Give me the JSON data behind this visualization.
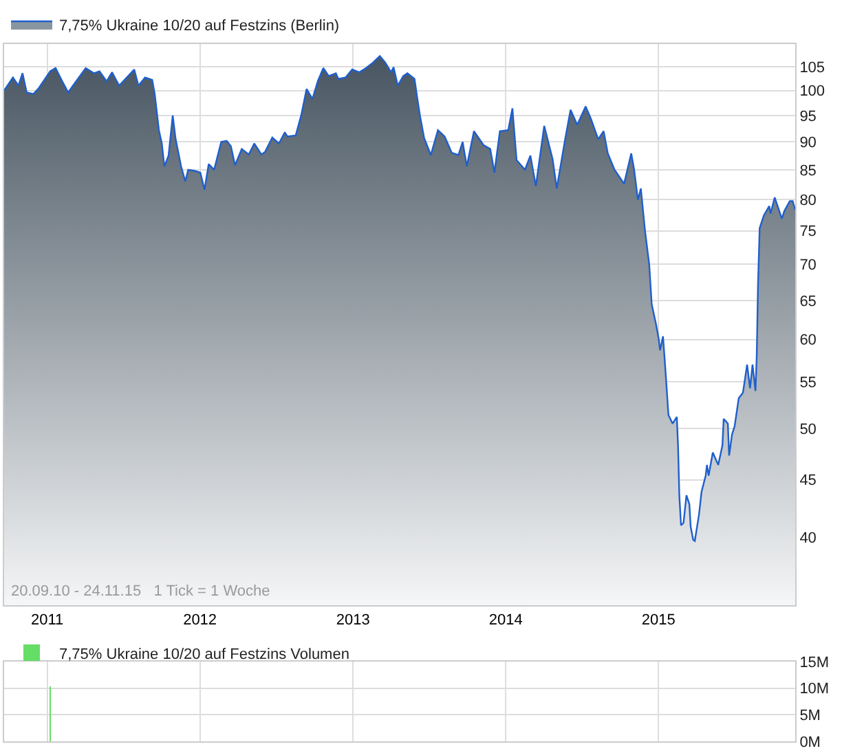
{
  "chart_data": [
    {
      "type": "area",
      "legend": "top left",
      "log": true,
      "grid": true,
      "annotations": [
        "20.09.10 - 24.11.15   1 Tick = 1 Woche"
      ],
      "x": [
        "2010-09-20",
        "2010-10-11",
        "2010-10-24",
        "2010-11-03",
        "2010-11-13",
        "2010-11-29",
        "2010-12-12",
        "2011-01-08",
        "2011-01-21",
        "2011-02-06",
        "2011-02-20",
        "2011-03-11",
        "2011-04-03",
        "2011-04-23",
        "2011-05-06",
        "2011-05-23",
        "2011-06-05",
        "2011-06-22",
        "2011-07-05",
        "2011-07-28",
        "2011-08-07",
        "2011-08-23",
        "2011-09-09",
        "2011-09-15",
        "2011-09-25",
        "2011-10-02",
        "2011-10-08",
        "2011-10-18",
        "2011-10-28",
        "2011-11-04",
        "2011-11-17",
        "2011-11-27",
        "2011-12-04",
        "2011-12-20",
        "2012-01-02",
        "2012-01-12",
        "2012-01-22",
        "2012-02-04",
        "2012-02-21",
        "2012-03-05",
        "2012-03-15",
        "2012-03-25",
        "2012-04-10",
        "2012-04-27",
        "2012-05-10",
        "2012-05-27",
        "2012-06-05",
        "2012-06-22",
        "2012-07-08",
        "2012-07-22",
        "2012-07-28",
        "2012-08-17",
        "2012-08-30",
        "2012-09-12",
        "2012-09-26",
        "2012-10-09",
        "2012-10-22",
        "2012-11-04",
        "2012-11-21",
        "2012-11-27",
        "2012-12-14",
        "2012-12-30",
        "2013-01-16",
        "2013-02-01",
        "2013-02-18",
        "2013-03-06",
        "2013-03-19",
        "2013-04-02",
        "2013-04-08",
        "2013-04-18",
        "2013-05-01",
        "2013-05-11",
        "2013-05-28",
        "2013-06-03",
        "2013-06-10",
        "2013-06-20",
        "2013-07-06",
        "2013-07-23",
        "2013-08-08",
        "2013-08-25",
        "2013-09-10",
        "2013-09-20",
        "2013-09-30",
        "2013-10-17",
        "2013-11-09",
        "2013-11-25",
        "2013-12-05",
        "2013-12-18",
        "2014-01-07",
        "2014-01-17",
        "2014-01-27",
        "2014-02-16",
        "2014-03-01",
        "2014-03-14",
        "2014-04-03",
        "2014-04-23",
        "2014-05-03",
        "2014-05-23",
        "2014-06-05",
        "2014-06-21",
        "2014-07-11",
        "2014-07-24",
        "2014-08-10",
        "2014-08-23",
        "2014-09-02",
        "2014-09-18",
        "2014-10-11",
        "2014-10-28",
        "2014-11-04",
        "2014-11-13",
        "2014-11-20",
        "2014-11-30",
        "2014-12-10",
        "2014-12-16",
        "2014-12-26",
        "2015-01-02",
        "2015-01-05",
        "2015-01-12",
        "2015-01-18",
        "2015-01-25",
        "2015-02-04",
        "2015-02-14",
        "2015-02-17",
        "2015-02-20",
        "2015-02-24",
        "2015-03-02",
        "2015-03-09",
        "2015-03-16",
        "2015-03-19",
        "2015-03-25",
        "2015-03-29",
        "2015-04-08",
        "2015-04-14",
        "2015-04-24",
        "2015-04-27",
        "2015-05-01",
        "2015-05-11",
        "2015-05-24",
        "2015-06-03",
        "2015-06-06",
        "2015-06-16",
        "2015-06-19",
        "2015-06-26",
        "2015-07-02",
        "2015-07-12",
        "2015-07-22",
        "2015-08-01",
        "2015-08-08",
        "2015-08-14",
        "2015-08-21",
        "2015-08-24",
        "2015-08-27",
        "2015-08-31",
        "2015-09-10",
        "2015-09-23",
        "2015-09-26",
        "2015-10-06",
        "2015-10-23",
        "2015-10-29",
        "2015-11-11",
        "2015-11-18",
        "2015-11-24"
      ],
      "series": [
        {
          "name": "7,75% Ukraine 10/20 auf Festzins (Berlin)",
          "color": "#1f5fcc",
          "values": [
            100,
            102.7,
            101,
            103.6,
            99.6,
            99.3,
            100.5,
            104,
            104.7,
            101.9,
            99.6,
            101.9,
            104.7,
            103.6,
            104,
            101.9,
            103.8,
            101,
            102.2,
            104.4,
            101,
            102.7,
            102.2,
            99.3,
            92.2,
            89.7,
            85.6,
            87.5,
            95,
            90.5,
            85.6,
            83,
            85,
            84.8,
            84.5,
            81.6,
            86,
            85,
            90,
            90.2,
            89.2,
            85.8,
            88.7,
            87.7,
            89.7,
            87.7,
            88.2,
            90.8,
            89.7,
            91.8,
            91,
            91.2,
            95,
            100.3,
            98.3,
            102,
            104.7,
            103,
            103.6,
            102.4,
            102.7,
            104.4,
            103.8,
            104.7,
            105.9,
            107.3,
            105.9,
            103.8,
            104.9,
            101,
            103,
            103.6,
            102.4,
            98.8,
            95,
            90.7,
            87.6,
            92.2,
            91,
            88,
            87.6,
            90,
            85.6,
            92,
            89.4,
            88.7,
            84.5,
            92,
            92.2,
            96.4,
            86.7,
            85,
            87.5,
            82.2,
            93,
            86.9,
            81.8,
            90.5,
            96.1,
            93.2,
            96.8,
            94.3,
            90.5,
            92,
            87.9,
            85,
            82.6,
            87.9,
            85,
            79.9,
            81.8,
            75,
            70,
            64.5,
            62,
            60,
            58.7,
            60.4,
            56.2,
            51.4,
            50.5,
            51.2,
            48.2,
            43.6,
            41,
            41.2,
            43.6,
            42.8,
            40.9,
            39.8,
            39.7,
            41.9,
            43.9,
            45.4,
            46.4,
            45.4,
            47.6,
            46.4,
            48.3,
            51,
            50.5,
            47.3,
            49.4,
            50.2,
            53.2,
            53.8,
            57,
            54.3,
            57,
            54,
            58,
            67.1,
            75.4,
            77.4,
            78.9,
            77.7,
            80.3,
            76.9,
            78.1,
            79.7,
            79.7,
            78.3
          ]
        }
      ],
      "xlim": [
        "2010-09-20",
        "2015-11-24"
      ],
      "xticks": [
        {
          "value": "2011-01-01",
          "label": "2011"
        },
        {
          "value": "2012-01-01",
          "label": "2012"
        },
        {
          "value": "2013-01-01",
          "label": "2013"
        },
        {
          "value": "2014-01-01",
          "label": "2014"
        },
        {
          "value": "2015-01-01",
          "label": "2015"
        }
      ],
      "ylim": [
        34.8,
        110
      ],
      "yticks": [
        40,
        45,
        50,
        55,
        60,
        65,
        70,
        75,
        80,
        85,
        90,
        95,
        100,
        105
      ]
    },
    {
      "type": "bar",
      "legend": "top left",
      "grid": true,
      "tick_labels": "y",
      "x": [
        "2011-01-08"
      ],
      "series": [
        {
          "name": "7,75% Ukraine 10/20 auf Festzins Volumen",
          "color": "#66dd66",
          "values": [
            10300000
          ]
        }
      ],
      "xlim": [
        "2010-09-20",
        "2015-11-24"
      ],
      "xticks": [
        {
          "value": "2011-01-01",
          "label": null
        },
        {
          "value": "2012-01-01",
          "label": null
        },
        {
          "value": "2013-01-01",
          "label": null
        },
        {
          "value": "2014-01-01",
          "label": null
        },
        {
          "value": "2015-01-01",
          "label": null
        }
      ],
      "ylim": [
        0,
        15000000
      ],
      "yticks": [
        {
          "value": 0,
          "label": "0M"
        },
        {
          "value": 5000000,
          "label": "5M"
        },
        {
          "value": 10000000,
          "label": "10M"
        },
        {
          "value": 15000000,
          "label": "15M"
        }
      ]
    }
  ]
}
